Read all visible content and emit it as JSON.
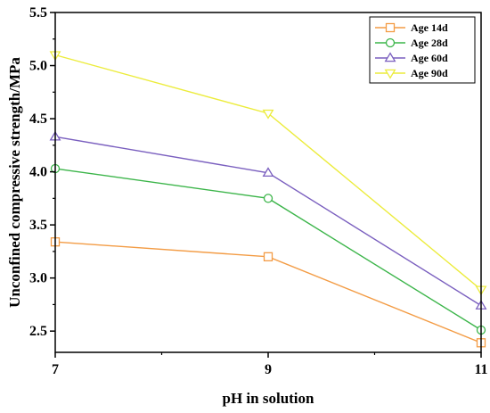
{
  "chart_data": {
    "type": "line",
    "title": "",
    "xlabel": "pH in solution",
    "ylabel": "Unconfined compressive strength/MPa",
    "x": [
      7,
      9,
      11
    ],
    "xlim": [
      7,
      11
    ],
    "ylim": [
      2.3,
      5.5
    ],
    "xticks": [
      7,
      9,
      11
    ],
    "xtick_labels": [
      "7",
      "9",
      "11"
    ],
    "yticks": [
      2.5,
      3.0,
      3.5,
      4.0,
      4.5,
      5.0,
      5.5
    ],
    "ytick_labels": [
      "2.5",
      "3.0",
      "3.5",
      "4.0",
      "4.5",
      "5.0",
      "5.5"
    ],
    "grid": false,
    "legend_position": "top-right",
    "series": [
      {
        "name": "Age 14d",
        "values": [
          3.34,
          3.2,
          2.39
        ],
        "color": "#f39c45",
        "marker": "square"
      },
      {
        "name": "Age 28d",
        "values": [
          4.03,
          3.75,
          2.51
        ],
        "color": "#3cb54a",
        "marker": "circle"
      },
      {
        "name": "Age 60d",
        "values": [
          4.33,
          3.99,
          2.74
        ],
        "color": "#7a5fbf",
        "marker": "triangle-up"
      },
      {
        "name": "Age 90d",
        "values": [
          5.1,
          4.55,
          2.89
        ],
        "color": "#ecec3c",
        "marker": "triangle-down"
      }
    ]
  }
}
